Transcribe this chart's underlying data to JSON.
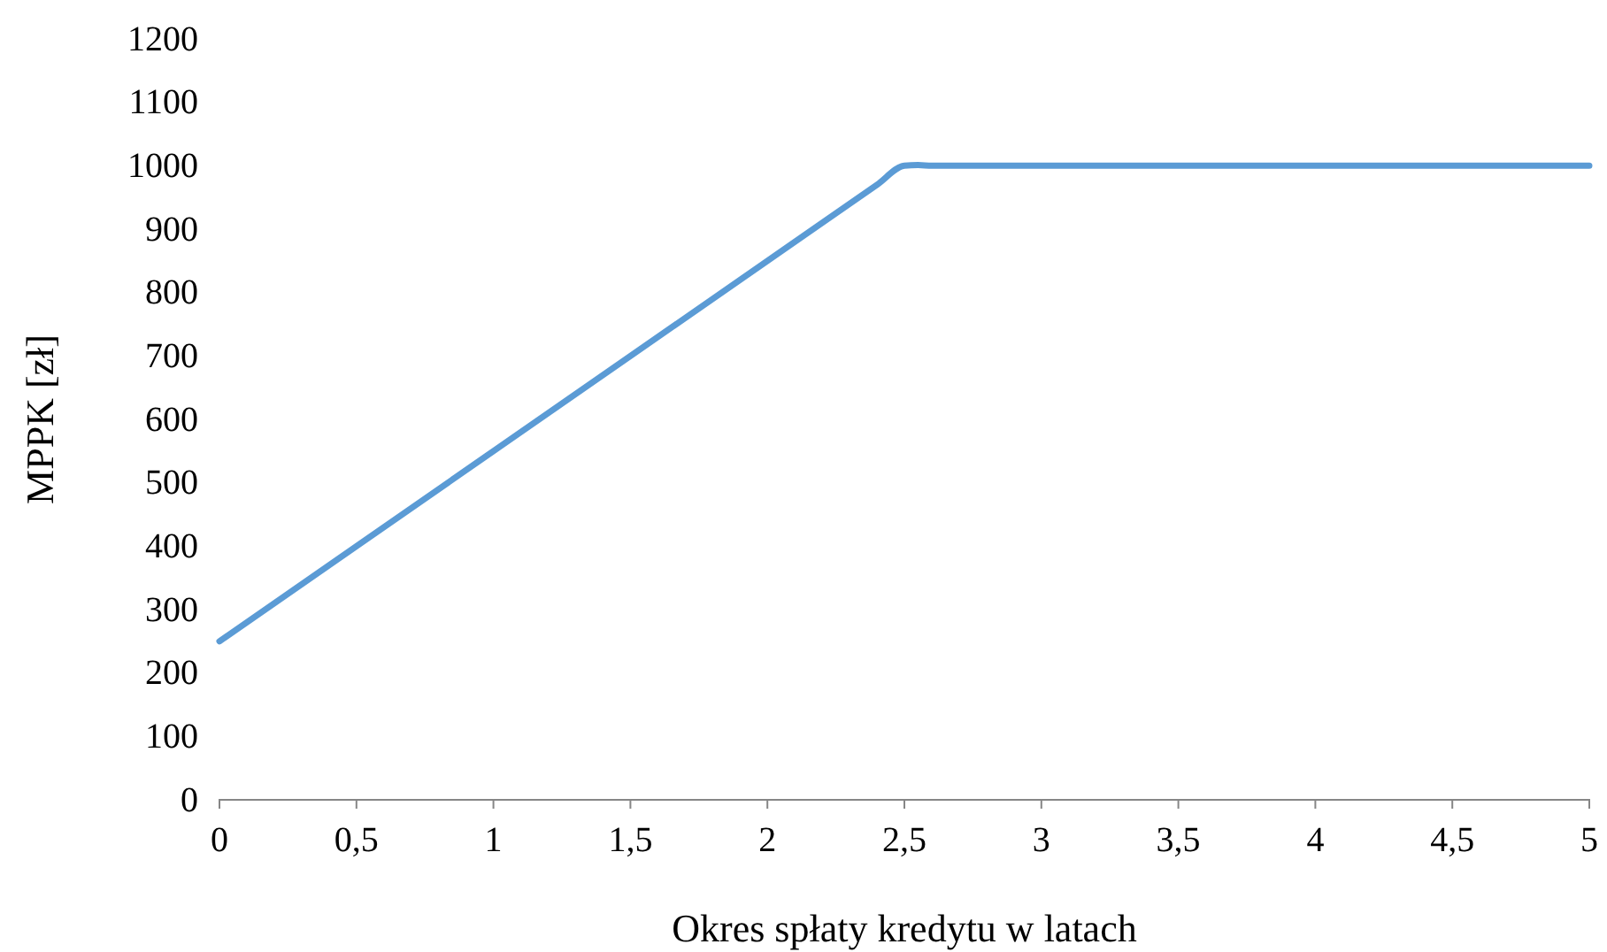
{
  "chart_data": {
    "type": "line",
    "xlabel": "Okres spłaty kredytu w latach",
    "ylabel": "MPPK [zł]",
    "x": [
      0,
      0.5,
      1,
      1.5,
      2,
      2.4,
      2.5,
      2.55,
      2.6,
      3,
      3.5,
      4,
      4.5,
      5
    ],
    "series": [
      {
        "color": "#5b9bd5",
        "values": [
          250,
          400,
          550,
          700,
          850,
          970,
          1000,
          1001,
          1000,
          1000,
          1000,
          1000,
          1000,
          1000
        ]
      }
    ],
    "xlim": [
      0,
      5
    ],
    "xticks": [
      0,
      {
        "value": 0.5,
        "label": "0,5"
      },
      1,
      {
        "value": 1.5,
        "label": "1,5"
      },
      2,
      {
        "value": 2.5,
        "label": "2,5"
      },
      3,
      {
        "value": 3.5,
        "label": "3,5"
      },
      4,
      {
        "value": 4.5,
        "label": "4,5"
      },
      5
    ],
    "ylim": [
      0,
      1200
    ],
    "yticks": [
      0,
      100,
      200,
      300,
      400,
      500,
      600,
      700,
      800,
      900,
      1000,
      1100,
      1200
    ],
    "marker": "none",
    "line_style": "solid"
  }
}
